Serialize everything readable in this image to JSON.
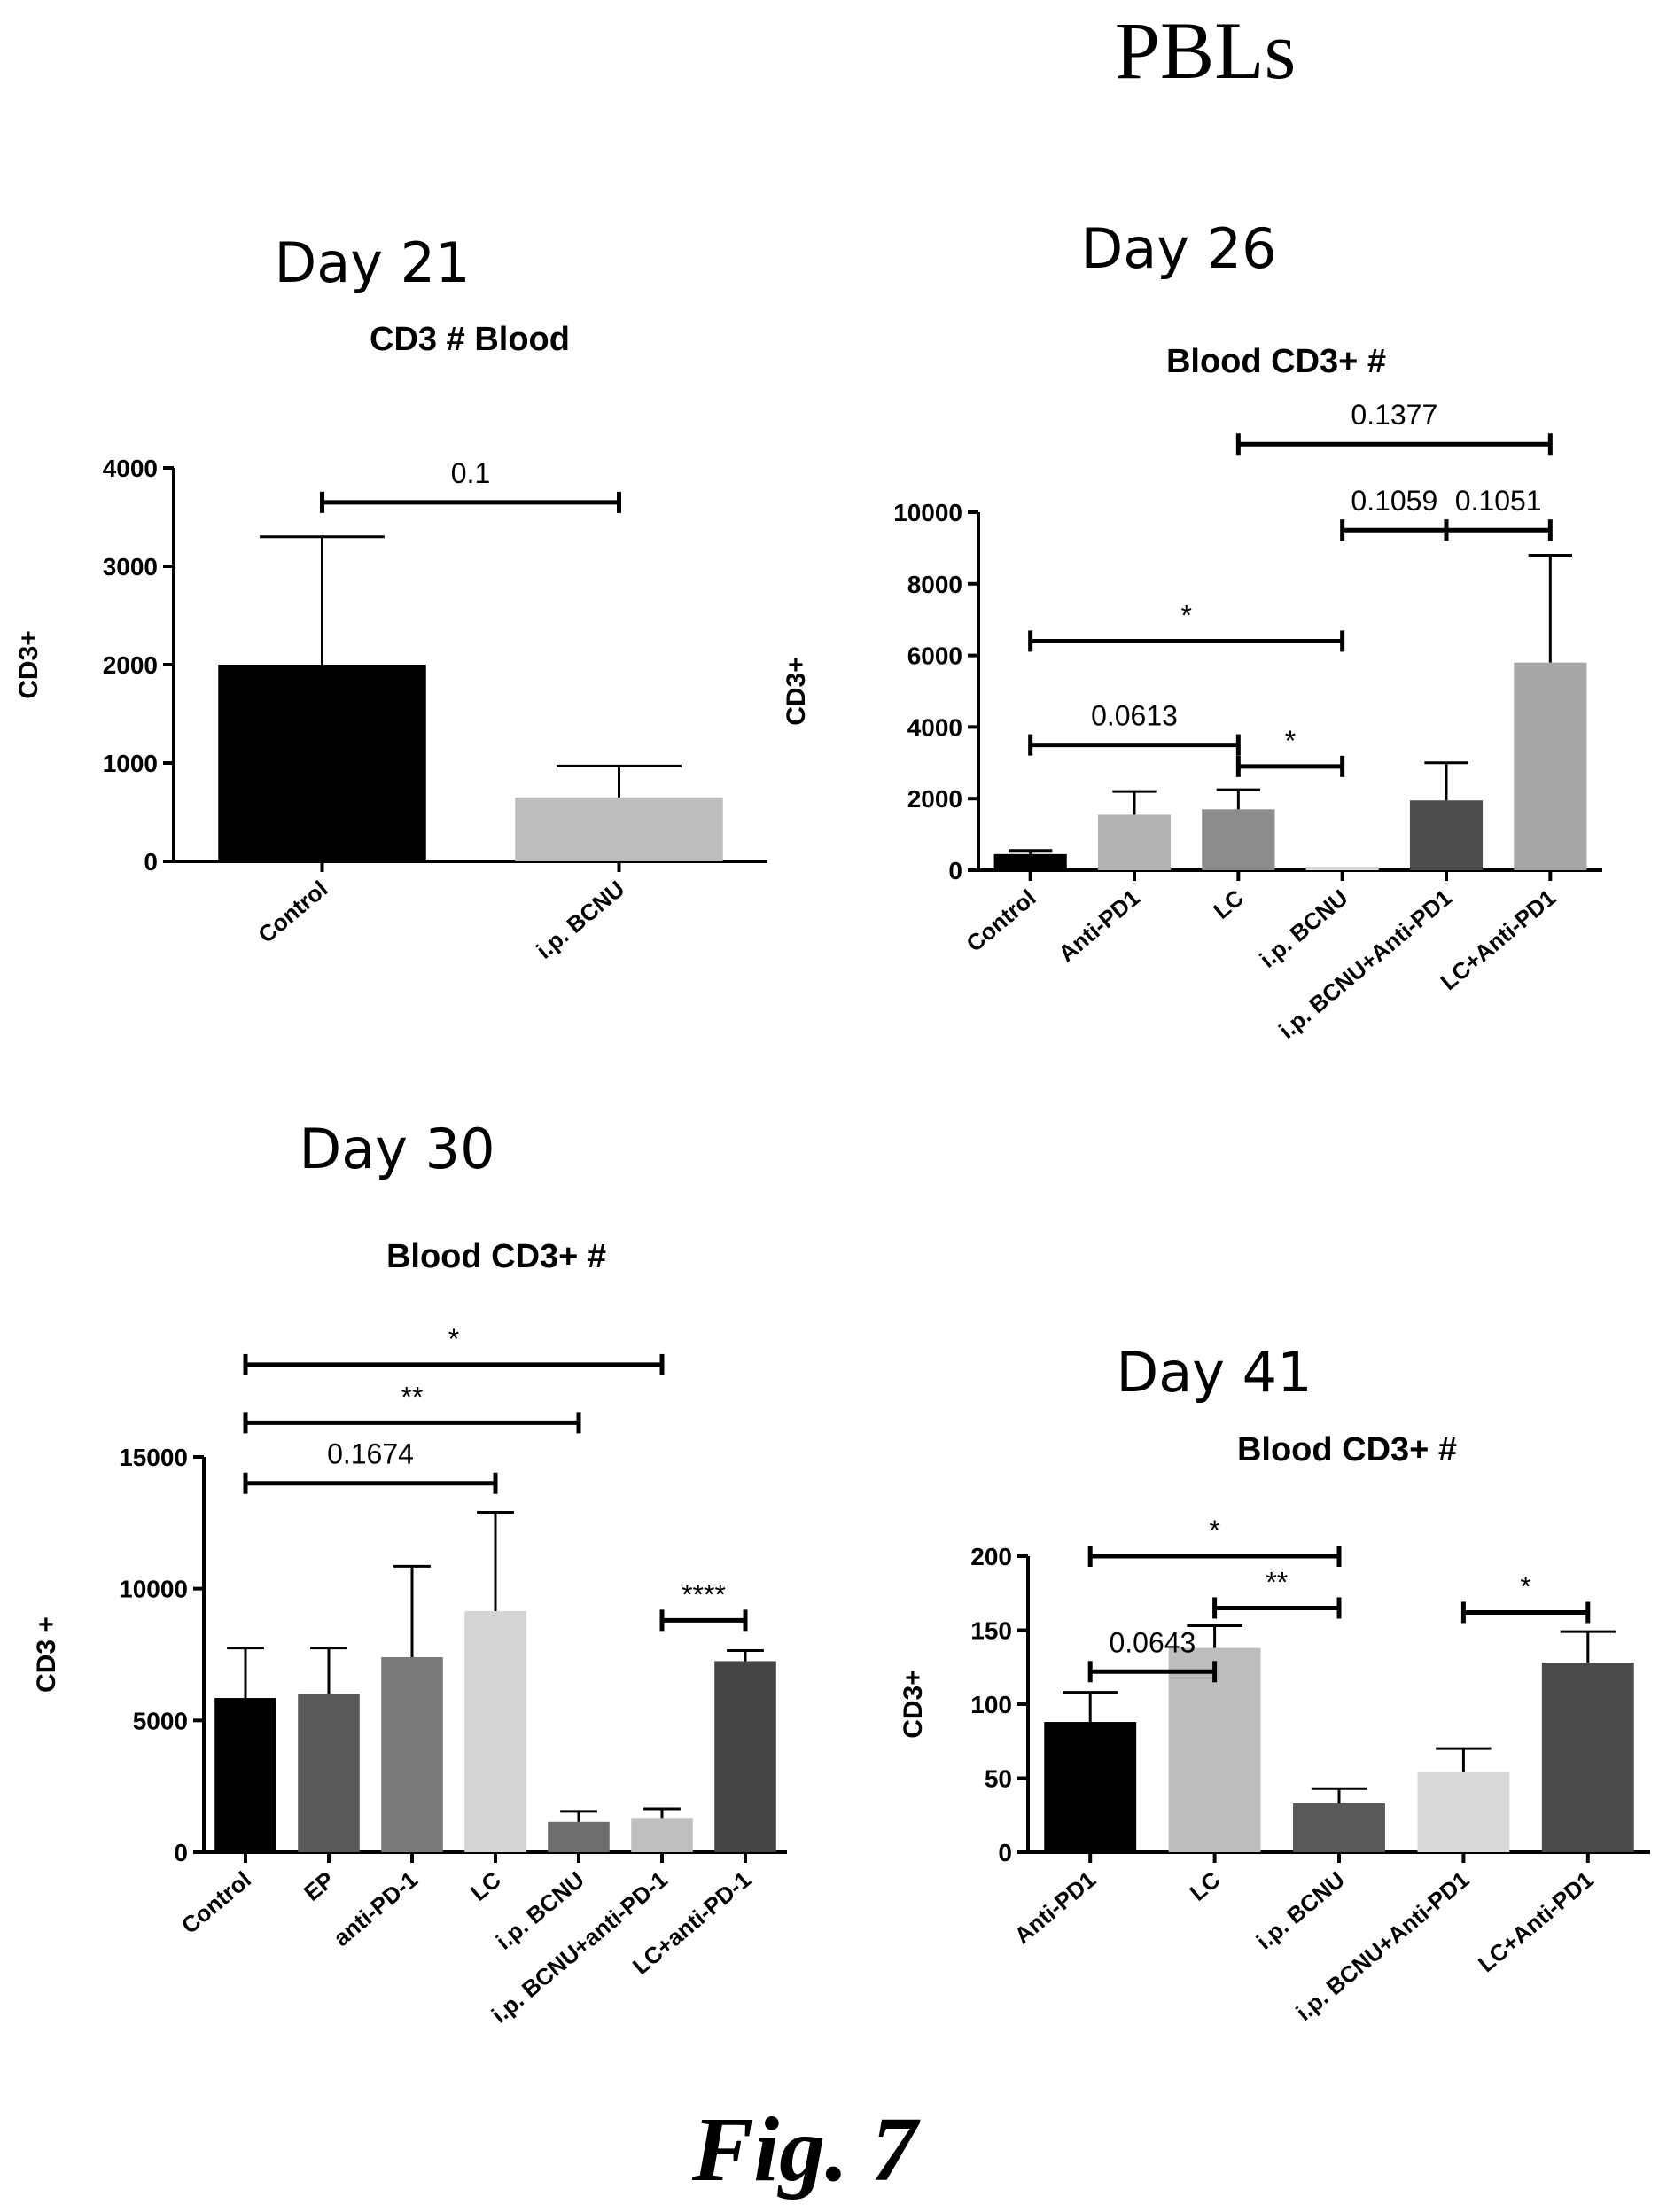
{
  "page_title": "PBLs",
  "caption": "Fig. 7",
  "chart_data": [
    {
      "panel": "Day 21",
      "title": "CD3 # Blood",
      "type": "bar",
      "ylabel": "CD3+",
      "ylim": [
        0,
        4000
      ],
      "yticks": [
        0,
        1000,
        2000,
        3000,
        4000
      ],
      "categories": [
        "Control",
        "i.p. BCNU"
      ],
      "values": [
        2000,
        650
      ],
      "errors": [
        1300,
        320
      ],
      "colors": [
        "#000000",
        "#bdbdbd"
      ],
      "significance": [
        {
          "from": 0,
          "to": 1,
          "label": "0.1",
          "level": 3650
        }
      ]
    },
    {
      "panel": "Day 26",
      "title": "Blood CD3+ #",
      "type": "bar",
      "ylabel": "CD3+",
      "ylim": [
        0,
        10000
      ],
      "yticks": [
        0,
        2000,
        4000,
        6000,
        8000,
        10000
      ],
      "categories": [
        "Control",
        "Anti-PD1",
        "LC",
        "i.p. BCNU",
        "i.p. BCNU+Anti-PD1",
        "LC+Anti-PD1"
      ],
      "values": [
        450,
        1550,
        1700,
        100,
        1950,
        5800
      ],
      "errors": [
        100,
        650,
        550,
        0,
        1050,
        3000
      ],
      "colors": [
        "#000000",
        "#b3b3b3",
        "#8c8c8c",
        "#d9d9d9",
        "#4d4d4d",
        "#a6a6a6"
      ],
      "significance": [
        {
          "from": 0,
          "to": 2,
          "label": "0.0613",
          "level": 3500
        },
        {
          "from": 0,
          "to": 3,
          "label": "*",
          "level": 6400
        },
        {
          "from": 2,
          "to": 3,
          "label": "*",
          "level": 2900
        },
        {
          "from": 3,
          "to": 4,
          "label": "0.1059",
          "level": 9500
        },
        {
          "from": 4,
          "to": 5,
          "label": "0.1051",
          "level": 9500
        },
        {
          "from": 2,
          "to": 5,
          "label": "0.1377",
          "level": 11900
        }
      ]
    },
    {
      "panel": "Day 30",
      "title": "Blood CD3+ #",
      "type": "bar",
      "ylabel": "CD3 +",
      "ylim": [
        0,
        15000
      ],
      "yticks": [
        0,
        5000,
        10000,
        15000
      ],
      "categories": [
        "Control",
        "EP",
        "anti-PD-1",
        "LC",
        "i.p. BCNU",
        "i.p. BCNU+anti-PD-1",
        "LC+anti-PD-1"
      ],
      "values": [
        5850,
        6000,
        7400,
        9150,
        1150,
        1300,
        7250
      ],
      "errors": [
        1900,
        1750,
        3450,
        3750,
        400,
        350,
        400
      ],
      "colors": [
        "#000000",
        "#595959",
        "#7a7a7a",
        "#d4d4d4",
        "#6e6e6e",
        "#bfbfbf",
        "#454545"
      ],
      "significance": [
        {
          "from": 0,
          "to": 3,
          "label": "0.1674",
          "level": 14000
        },
        {
          "from": 0,
          "to": 4,
          "label": "**",
          "level": 16300
        },
        {
          "from": 0,
          "to": 5,
          "label": "*",
          "level": 18500
        },
        {
          "from": 5,
          "to": 6,
          "label": "****",
          "level": 8800
        }
      ]
    },
    {
      "panel": "Day 41",
      "title": "Blood CD3+ #",
      "type": "bar",
      "ylabel": "CD3+",
      "ylim": [
        0,
        200
      ],
      "yticks": [
        0,
        50,
        100,
        150,
        200
      ],
      "categories": [
        "Anti-PD1",
        "LC",
        "i.p. BCNU",
        "i.p. BCNU+Anti-PD1",
        "LC+Anti-PD1"
      ],
      "values": [
        88,
        138,
        33,
        54,
        128
      ],
      "errors": [
        20,
        15,
        10,
        16,
        21
      ],
      "colors": [
        "#000000",
        "#bdbdbd",
        "#595959",
        "#d9d9d9",
        "#4a4a4a"
      ],
      "significance": [
        {
          "from": 0,
          "to": 1,
          "label": "0.0643",
          "level": 122
        },
        {
          "from": 0,
          "to": 2,
          "label": "*",
          "level": 200
        },
        {
          "from": 1,
          "to": 2,
          "label": "**",
          "level": 165
        },
        {
          "from": 3,
          "to": 4,
          "label": "*",
          "level": 162
        }
      ]
    }
  ]
}
